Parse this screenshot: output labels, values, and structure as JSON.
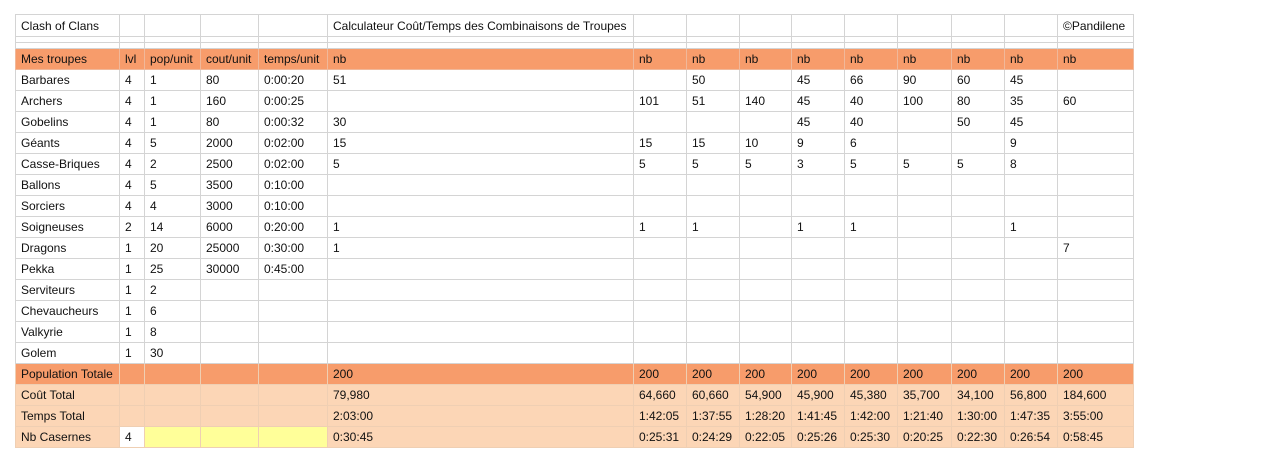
{
  "table": {
    "title_row": [
      "Clash of Clans",
      null,
      null,
      null,
      null,
      "Calculateur Coût/Temps des Combinaisons de Troupes",
      null,
      null,
      null,
      null,
      null,
      null,
      null,
      null,
      "©Pandilene"
    ],
    "header": [
      "Mes troupes",
      "lvl",
      "pop/unit",
      "cout/unit",
      "temps/unit",
      "nb",
      "nb",
      "nb",
      "nb",
      "nb",
      "nb",
      "nb",
      "nb",
      "nb",
      "nb"
    ],
    "rows": [
      [
        "Barbares",
        4,
        1,
        80,
        "0:00:20",
        51,
        null,
        50,
        null,
        45,
        66,
        90,
        60,
        45,
        null
      ],
      [
        "Archers",
        4,
        1,
        160,
        "0:00:25",
        null,
        101,
        51,
        140,
        45,
        40,
        100,
        80,
        35,
        60
      ],
      [
        "Gobelins",
        4,
        1,
        80,
        "0:00:32",
        30,
        null,
        null,
        null,
        45,
        40,
        null,
        50,
        45,
        null
      ],
      [
        "Géants",
        4,
        5,
        2000,
        "0:02:00",
        15,
        15,
        15,
        10,
        9,
        6,
        null,
        null,
        9,
        null
      ],
      [
        "Casse-Briques",
        4,
        2,
        2500,
        "0:02:00",
        5,
        5,
        5,
        5,
        3,
        5,
        5,
        5,
        8,
        null
      ],
      [
        "Ballons",
        4,
        5,
        3500,
        "0:10:00",
        null,
        null,
        null,
        null,
        null,
        null,
        null,
        null,
        null,
        null
      ],
      [
        "Sorciers",
        4,
        4,
        3000,
        "0:10:00",
        null,
        null,
        null,
        null,
        null,
        null,
        null,
        null,
        null,
        null
      ],
      [
        "Soigneuses",
        2,
        14,
        6000,
        "0:20:00",
        1,
        1,
        1,
        null,
        1,
        1,
        null,
        null,
        1,
        null
      ],
      [
        "Dragons",
        1,
        20,
        25000,
        "0:30:00",
        1,
        null,
        null,
        null,
        null,
        null,
        null,
        null,
        null,
        7
      ],
      [
        "Pekka",
        1,
        25,
        30000,
        "0:45:00",
        null,
        null,
        null,
        null,
        null,
        null,
        null,
        null,
        null,
        null
      ],
      [
        "Serviteurs",
        1,
        2,
        null,
        null,
        null,
        null,
        null,
        null,
        null,
        null,
        null,
        null,
        null,
        null
      ],
      [
        "Chevaucheurs",
        1,
        6,
        null,
        null,
        null,
        null,
        null,
        null,
        null,
        null,
        null,
        null,
        null,
        null
      ],
      [
        "Valkyrie",
        1,
        8,
        null,
        null,
        null,
        null,
        null,
        null,
        null,
        null,
        null,
        null,
        null,
        null
      ],
      [
        "Golem",
        1,
        30,
        null,
        null,
        null,
        null,
        null,
        null,
        null,
        null,
        null,
        null,
        null,
        null
      ]
    ],
    "totals": [
      [
        "Population Totale",
        null,
        null,
        null,
        null,
        200,
        200,
        200,
        200,
        200,
        200,
        200,
        200,
        200,
        200
      ],
      [
        "Coût Total",
        null,
        null,
        null,
        null,
        "79,980",
        "64,660",
        "60,660",
        "54,900",
        "45,900",
        "45,380",
        "35,700",
        "34,100",
        "56,800",
        "184,600"
      ],
      [
        "Temps Total",
        null,
        null,
        null,
        null,
        "2:03:00",
        "1:42:05",
        "1:37:55",
        "1:28:20",
        "1:41:45",
        "1:42:00",
        "1:21:40",
        "1:30:00",
        "1:47:35",
        "3:55:00"
      ],
      [
        "Nb Casernes",
        4,
        null,
        null,
        null,
        "0:30:45",
        "0:25:31",
        "0:24:29",
        "0:22:05",
        "0:25:26",
        "0:25:30",
        "0:20:25",
        "0:22:30",
        "0:26:54",
        "0:58:45"
      ]
    ]
  }
}
